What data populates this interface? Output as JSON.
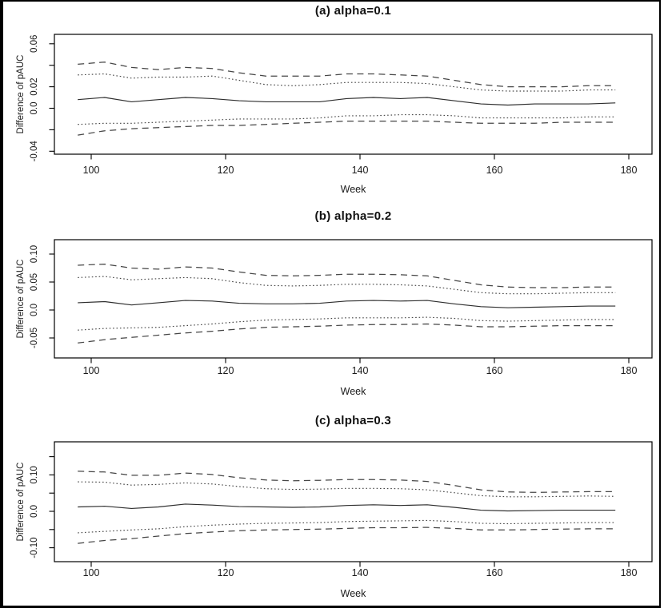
{
  "figure": {
    "background": "#ffffff",
    "frame_color": "#000000",
    "solid_line_color": "#2e2e2e",
    "band_line_color": "#454545"
  },
  "chart_data": [
    {
      "type": "line",
      "title": "(a) alpha=0.1",
      "xlabel": "Week",
      "ylabel": "Difference of pAUC",
      "x": [
        98,
        102,
        106,
        110,
        114,
        118,
        122,
        126,
        130,
        134,
        138,
        142,
        146,
        150,
        154,
        158,
        162,
        166,
        170,
        174,
        178
      ],
      "xlim": [
        94.5,
        183.5
      ],
      "ylim": [
        -0.042,
        0.069
      ],
      "x_ticks": [
        100,
        120,
        140,
        160,
        180
      ],
      "y_ticks": [
        {
          "v": 0.06,
          "label": "0.06"
        },
        {
          "v": 0.04,
          "label": ""
        },
        {
          "v": 0.02,
          "label": "0.02"
        },
        {
          "v": 0.0,
          "label": "0.0"
        },
        {
          "v": -0.02,
          "label": ""
        },
        {
          "v": -0.04,
          "label": "-0.04"
        }
      ],
      "grid": false,
      "legend": "none",
      "series": [
        {
          "name": "upper-outer-dashed",
          "style": "dashed",
          "values": [
            0.041,
            0.043,
            0.038,
            0.036,
            0.038,
            0.037,
            0.033,
            0.03,
            0.03,
            0.03,
            0.032,
            0.032,
            0.031,
            0.03,
            0.026,
            0.022,
            0.02,
            0.02,
            0.02,
            0.021,
            0.021
          ]
        },
        {
          "name": "upper-inner-dotted",
          "style": "dotted",
          "values": [
            0.031,
            0.032,
            0.028,
            0.029,
            0.029,
            0.03,
            0.026,
            0.022,
            0.021,
            0.022,
            0.024,
            0.024,
            0.024,
            0.023,
            0.02,
            0.017,
            0.016,
            0.016,
            0.016,
            0.017,
            0.017
          ]
        },
        {
          "name": "estimate-solid",
          "style": "solid",
          "values": [
            0.008,
            0.01,
            0.006,
            0.008,
            0.01,
            0.009,
            0.007,
            0.006,
            0.006,
            0.006,
            0.009,
            0.01,
            0.009,
            0.01,
            0.007,
            0.004,
            0.003,
            0.004,
            0.004,
            0.004,
            0.005
          ]
        },
        {
          "name": "lower-inner-dotted",
          "style": "dotted",
          "values": [
            -0.015,
            -0.014,
            -0.014,
            -0.013,
            -0.012,
            -0.011,
            -0.01,
            -0.01,
            -0.01,
            -0.009,
            -0.007,
            -0.007,
            -0.006,
            -0.006,
            -0.007,
            -0.009,
            -0.009,
            -0.009,
            -0.009,
            -0.008,
            -0.008
          ]
        },
        {
          "name": "lower-outer-dashed",
          "style": "dashed",
          "values": [
            -0.025,
            -0.021,
            -0.019,
            -0.018,
            -0.017,
            -0.016,
            -0.016,
            -0.015,
            -0.014,
            -0.013,
            -0.012,
            -0.012,
            -0.012,
            -0.012,
            -0.013,
            -0.014,
            -0.014,
            -0.014,
            -0.013,
            -0.013,
            -0.013
          ]
        }
      ]
    },
    {
      "type": "line",
      "title": "(b) alpha=0.2",
      "xlabel": "Week",
      "ylabel": "Difference of pAUC",
      "x": [
        98,
        102,
        106,
        110,
        114,
        118,
        122,
        126,
        130,
        134,
        138,
        142,
        146,
        150,
        154,
        158,
        162,
        166,
        170,
        174,
        178
      ],
      "xlim": [
        94.5,
        183.5
      ],
      "ylim": [
        -0.086,
        0.126
      ],
      "x_ticks": [
        100,
        120,
        140,
        160,
        180
      ],
      "y_ticks": [
        {
          "v": 0.1,
          "label": "0.10"
        },
        {
          "v": 0.05,
          "label": "0.05"
        },
        {
          "v": 0.0,
          "label": "0.0"
        },
        {
          "v": -0.05,
          "label": "-0.05"
        }
      ],
      "grid": false,
      "legend": "none",
      "series": [
        {
          "name": "upper-outer-dashed",
          "style": "dashed",
          "values": [
            0.08,
            0.082,
            0.075,
            0.073,
            0.077,
            0.075,
            0.068,
            0.062,
            0.061,
            0.062,
            0.064,
            0.064,
            0.063,
            0.061,
            0.053,
            0.045,
            0.041,
            0.04,
            0.04,
            0.041,
            0.041
          ]
        },
        {
          "name": "upper-inner-dotted",
          "style": "dotted",
          "values": [
            0.058,
            0.06,
            0.054,
            0.056,
            0.058,
            0.056,
            0.049,
            0.044,
            0.043,
            0.044,
            0.046,
            0.046,
            0.045,
            0.043,
            0.037,
            0.031,
            0.029,
            0.029,
            0.03,
            0.031,
            0.031
          ]
        },
        {
          "name": "estimate-solid",
          "style": "solid",
          "values": [
            0.013,
            0.015,
            0.009,
            0.013,
            0.017,
            0.016,
            0.012,
            0.011,
            0.011,
            0.012,
            0.016,
            0.017,
            0.016,
            0.017,
            0.011,
            0.006,
            0.004,
            0.005,
            0.006,
            0.007,
            0.007
          ]
        },
        {
          "name": "lower-inner-dotted",
          "style": "dotted",
          "values": [
            -0.036,
            -0.033,
            -0.032,
            -0.031,
            -0.028,
            -0.025,
            -0.021,
            -0.018,
            -0.017,
            -0.016,
            -0.014,
            -0.014,
            -0.014,
            -0.013,
            -0.015,
            -0.019,
            -0.02,
            -0.019,
            -0.018,
            -0.017,
            -0.017
          ]
        },
        {
          "name": "lower-outer-dashed",
          "style": "dashed",
          "values": [
            -0.059,
            -0.053,
            -0.049,
            -0.045,
            -0.041,
            -0.038,
            -0.034,
            -0.031,
            -0.03,
            -0.029,
            -0.027,
            -0.026,
            -0.026,
            -0.025,
            -0.027,
            -0.03,
            -0.03,
            -0.029,
            -0.028,
            -0.028,
            -0.028
          ]
        }
      ]
    },
    {
      "type": "line",
      "title": "(c) alpha=0.3",
      "xlabel": "Week",
      "ylabel": "Difference of pAUC",
      "x": [
        98,
        102,
        106,
        110,
        114,
        118,
        122,
        126,
        130,
        134,
        138,
        142,
        146,
        150,
        154,
        158,
        162,
        166,
        170,
        174,
        178
      ],
      "xlim": [
        94.5,
        183.5
      ],
      "ylim": [
        -0.138,
        0.191
      ],
      "x_ticks": [
        100,
        120,
        140,
        160,
        180
      ],
      "y_ticks": [
        {
          "v": 0.15,
          "label": ""
        },
        {
          "v": 0.1,
          "label": "0.10"
        },
        {
          "v": 0.05,
          "label": ""
        },
        {
          "v": 0.0,
          "label": "0.0"
        },
        {
          "v": -0.05,
          "label": ""
        },
        {
          "v": -0.1,
          "label": "-0.10"
        }
      ],
      "grid": false,
      "legend": "none",
      "series": [
        {
          "name": "upper-outer-dashed",
          "style": "dashed",
          "values": [
            0.11,
            0.108,
            0.099,
            0.099,
            0.105,
            0.101,
            0.092,
            0.086,
            0.084,
            0.085,
            0.087,
            0.087,
            0.086,
            0.082,
            0.071,
            0.059,
            0.053,
            0.052,
            0.053,
            0.054,
            0.054
          ]
        },
        {
          "name": "upper-inner-dotted",
          "style": "dotted",
          "values": [
            0.081,
            0.08,
            0.072,
            0.074,
            0.078,
            0.075,
            0.068,
            0.062,
            0.06,
            0.061,
            0.063,
            0.063,
            0.062,
            0.059,
            0.051,
            0.043,
            0.04,
            0.04,
            0.041,
            0.042,
            0.041
          ]
        },
        {
          "name": "estimate-solid",
          "style": "solid",
          "values": [
            0.012,
            0.014,
            0.008,
            0.012,
            0.02,
            0.017,
            0.013,
            0.012,
            0.011,
            0.012,
            0.016,
            0.018,
            0.016,
            0.018,
            0.011,
            0.003,
            0.001,
            0.002,
            0.003,
            0.003,
            0.003
          ]
        },
        {
          "name": "lower-inner-dotted",
          "style": "dotted",
          "values": [
            -0.059,
            -0.055,
            -0.051,
            -0.048,
            -0.042,
            -0.038,
            -0.035,
            -0.033,
            -0.032,
            -0.031,
            -0.028,
            -0.027,
            -0.026,
            -0.025,
            -0.028,
            -0.033,
            -0.034,
            -0.033,
            -0.032,
            -0.031,
            -0.031
          ]
        },
        {
          "name": "lower-outer-dashed",
          "style": "dashed",
          "values": [
            -0.088,
            -0.08,
            -0.075,
            -0.068,
            -0.061,
            -0.057,
            -0.053,
            -0.051,
            -0.05,
            -0.049,
            -0.047,
            -0.045,
            -0.045,
            -0.044,
            -0.047,
            -0.051,
            -0.051,
            -0.05,
            -0.049,
            -0.048,
            -0.048
          ]
        }
      ]
    }
  ]
}
